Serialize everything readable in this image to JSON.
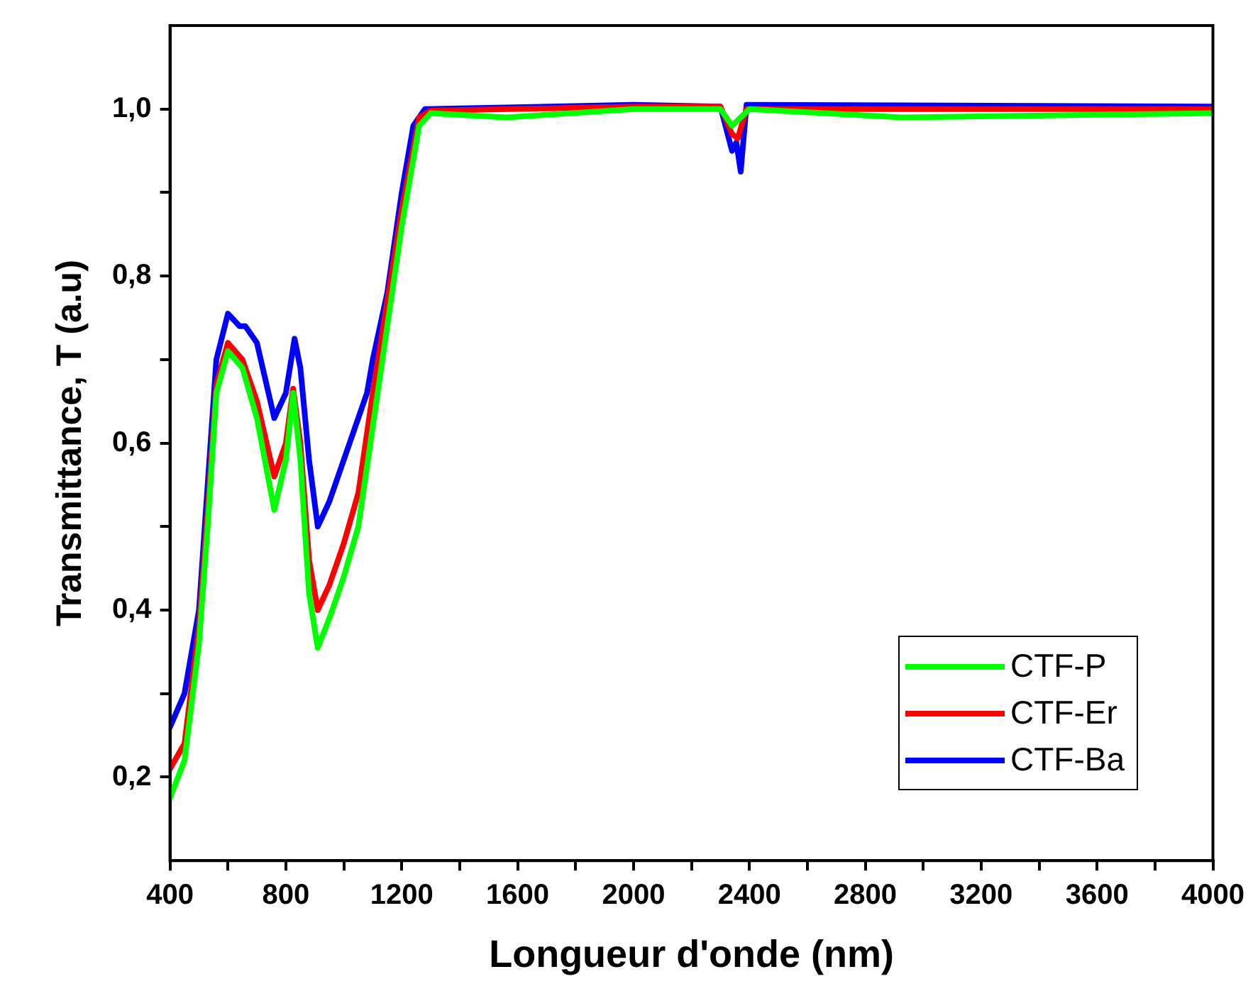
{
  "chart_data": {
    "type": "line",
    "xlabel": "Longueur d'onde (nm)",
    "ylabel": "Transmittance, T (a.u)",
    "xlim": [
      400,
      4000
    ],
    "ylim": [
      0.1,
      1.1
    ],
    "xticks": [
      400,
      {
        "value": 600,
        "label": null
      },
      800,
      {
        "value": 1000,
        "label": null
      },
      1200,
      {
        "value": 1400,
        "label": null
      },
      1600,
      {
        "value": 1800,
        "label": null
      },
      2000,
      {
        "value": 2200,
        "label": null
      },
      2400,
      {
        "value": 2600,
        "label": null
      },
      2800,
      {
        "value": 3000,
        "label": null
      },
      3200,
      {
        "value": 3400,
        "label": null
      },
      3600,
      {
        "value": 3800,
        "label": null
      },
      4000
    ],
    "yticks": [
      {
        "value": 0.2,
        "label": "0,2"
      },
      {
        "value": 0.3,
        "label": null
      },
      {
        "value": 0.4,
        "label": "0,4"
      },
      {
        "value": 0.5,
        "label": null
      },
      {
        "value": 0.6,
        "label": "0,6"
      },
      {
        "value": 0.7,
        "label": null
      },
      {
        "value": 0.8,
        "label": "0,8"
      },
      {
        "value": 0.9,
        "label": null
      },
      {
        "value": 1.0,
        "label": "1,0"
      }
    ],
    "grid": false,
    "legend": "bottom right",
    "marker": "none",
    "line_style": "solid",
    "series": [
      {
        "name": "CTF-P",
        "color": "#00ff00",
        "x": [
          400,
          450,
          500,
          530,
          560,
          600,
          650,
          700,
          760,
          800,
          825,
          850,
          880,
          910,
          950,
          1000,
          1050,
          1100,
          1150,
          1200,
          1260,
          1300,
          1560,
          2000,
          2300,
          2340,
          2400,
          2930,
          4000
        ],
        "values": [
          0.175,
          0.22,
          0.36,
          0.5,
          0.66,
          0.71,
          0.69,
          0.63,
          0.52,
          0.58,
          0.66,
          0.58,
          0.42,
          0.355,
          0.39,
          0.44,
          0.5,
          0.62,
          0.74,
          0.86,
          0.98,
          0.995,
          0.99,
          1.0,
          1.0,
          0.98,
          1.0,
          0.99,
          0.995
        ]
      },
      {
        "name": "CTF-Er",
        "color": "#ff0000",
        "x": [
          400,
          450,
          500,
          530,
          560,
          600,
          650,
          700,
          760,
          800,
          825,
          850,
          880,
          910,
          950,
          1000,
          1050,
          1100,
          1150,
          1200,
          1260,
          1300,
          2000,
          2300,
          2340,
          2360,
          2390,
          4000
        ],
        "values": [
          0.21,
          0.24,
          0.38,
          0.52,
          0.67,
          0.72,
          0.7,
          0.65,
          0.56,
          0.6,
          0.665,
          0.6,
          0.46,
          0.4,
          0.43,
          0.48,
          0.54,
          0.66,
          0.77,
          0.88,
          0.99,
          0.998,
          1.003,
          1.003,
          0.97,
          0.965,
          1.0,
          1.0
        ]
      },
      {
        "name": "CTF-Ba",
        "color": "#0000ff",
        "x": [
          400,
          450,
          500,
          530,
          560,
          600,
          640,
          660,
          700,
          760,
          800,
          830,
          850,
          880,
          910,
          950,
          1000,
          1050,
          1080,
          1100,
          1150,
          1200,
          1240,
          1280,
          2000,
          2300,
          2340,
          2355,
          2370,
          2390,
          4000
        ],
        "values": [
          0.26,
          0.3,
          0.4,
          0.55,
          0.7,
          0.755,
          0.74,
          0.74,
          0.72,
          0.63,
          0.66,
          0.725,
          0.69,
          0.58,
          0.5,
          0.53,
          0.58,
          0.63,
          0.66,
          0.7,
          0.78,
          0.9,
          0.98,
          1.0,
          1.005,
          1.003,
          0.95,
          0.96,
          0.925,
          1.005,
          1.003
        ]
      }
    ]
  }
}
